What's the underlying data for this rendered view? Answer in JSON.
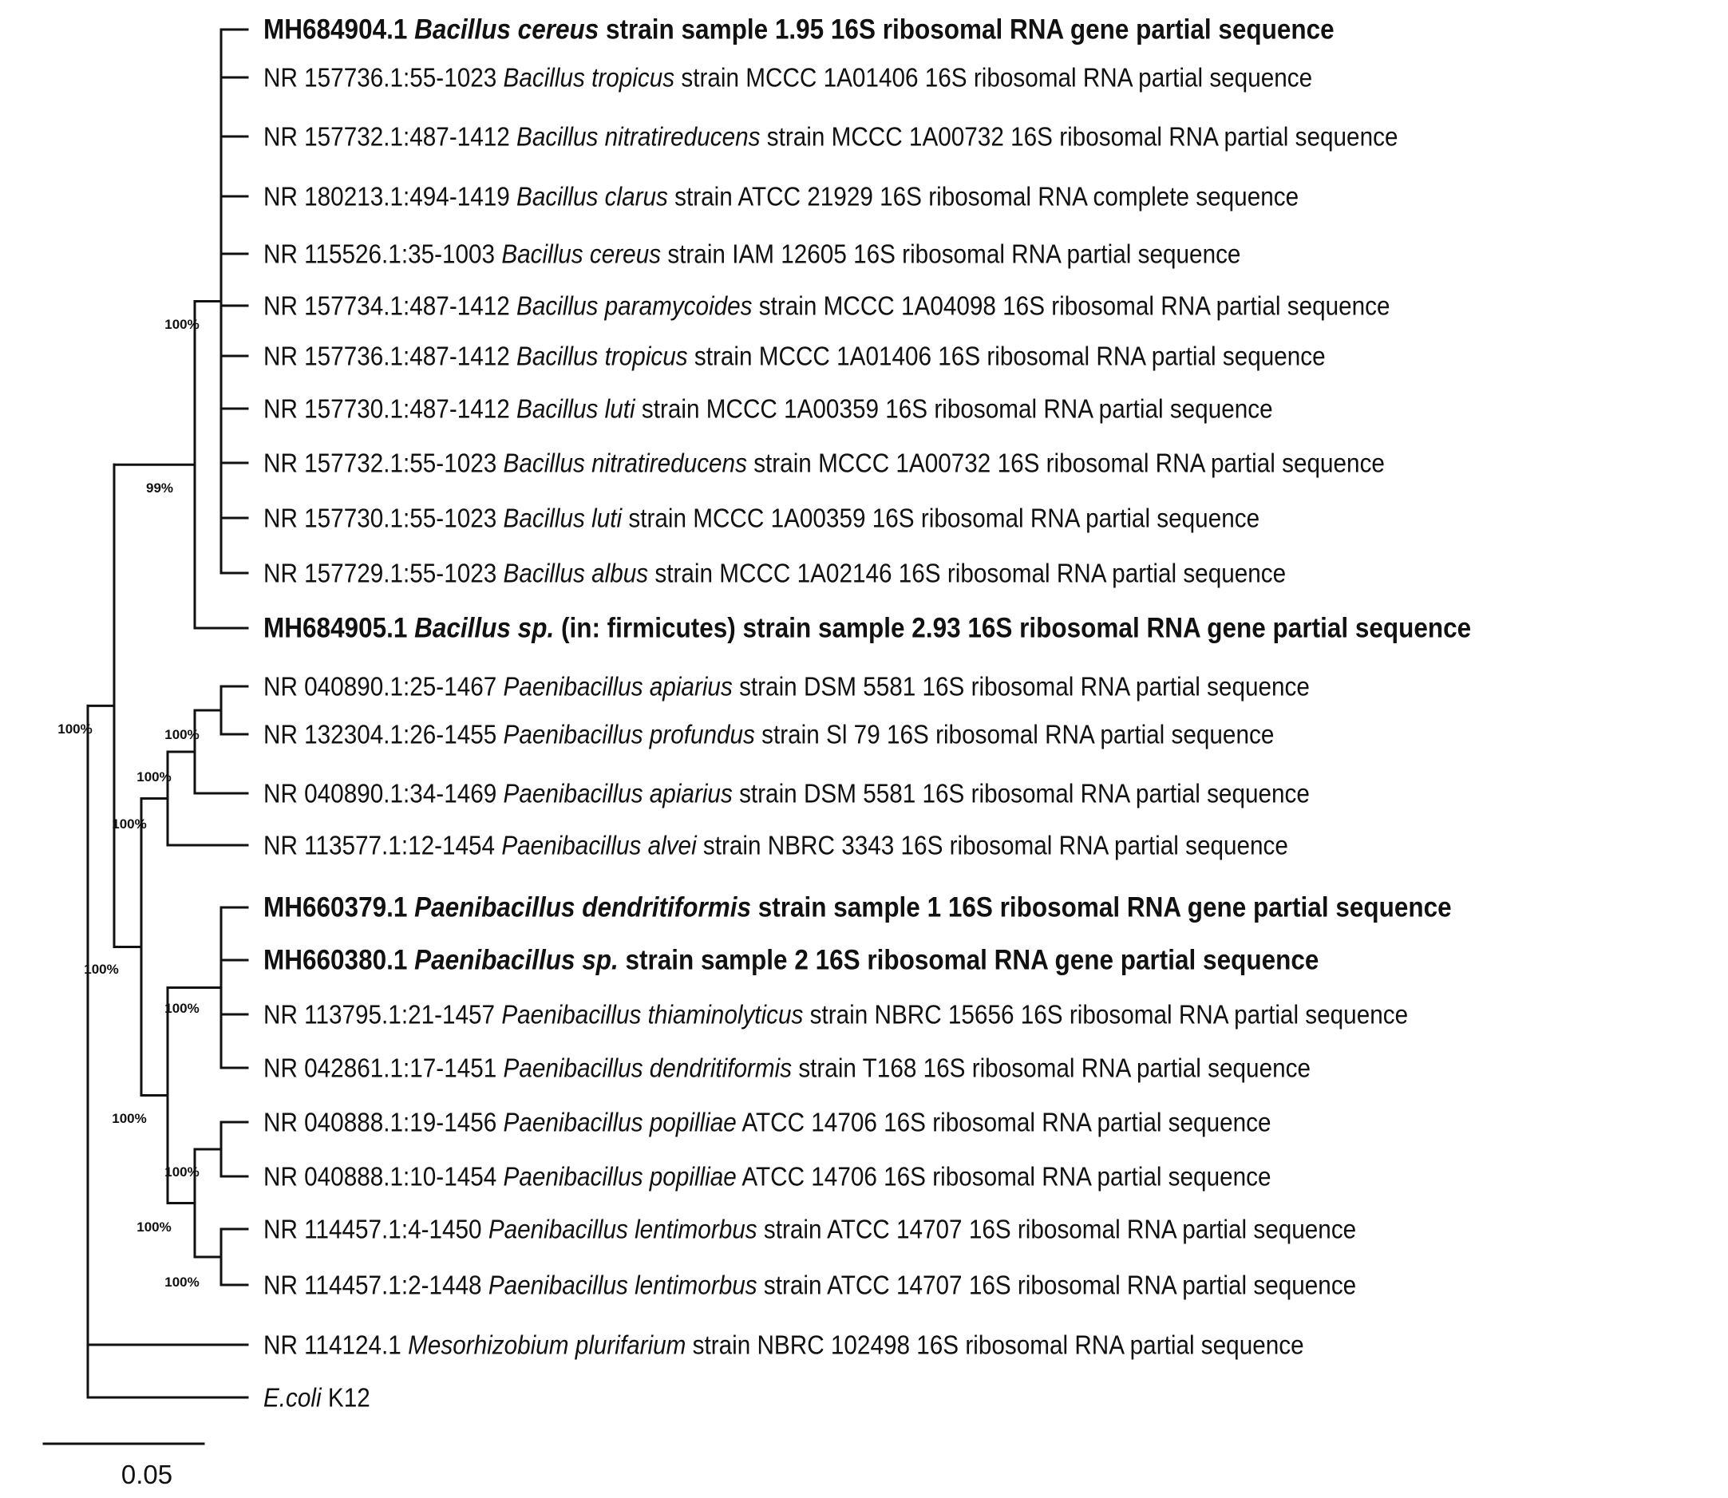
{
  "chart_data": {
    "type": "phylogenetic-tree",
    "scale_bar_label": "0.05",
    "leaves": [
      {
        "id": "L1",
        "bold": true,
        "pre": "MH684904.1 ",
        "ital": "Bacillus cereus",
        "post": " strain sample 1.95 16S ribosomal RNA gene partial sequence"
      },
      {
        "id": "L2",
        "bold": false,
        "pre": "NR 157736.1:55-1023 ",
        "ital": "Bacillus tropicus",
        "post": " strain MCCC 1A01406 16S ribosomal RNA partial sequence"
      },
      {
        "id": "L3",
        "bold": false,
        "pre": "NR 157732.1:487-1412 ",
        "ital": "Bacillus nitratireducens",
        "post": " strain MCCC 1A00732 16S ribosomal RNA partial sequence"
      },
      {
        "id": "L4",
        "bold": false,
        "pre": "NR 180213.1:494-1419 ",
        "ital": "Bacillus clarus",
        "post": " strain ATCC 21929 16S ribosomal RNA complete sequence"
      },
      {
        "id": "L5",
        "bold": false,
        "pre": "NR 115526.1:35-1003 ",
        "ital": "Bacillus cereus",
        "post": " strain IAM 12605 16S ribosomal RNA partial sequence"
      },
      {
        "id": "L6",
        "bold": false,
        "pre": "NR 157734.1:487-1412 ",
        "ital": "Bacillus paramycoides",
        "post": " strain MCCC 1A04098 16S ribosomal RNA partial sequence"
      },
      {
        "id": "L7",
        "bold": false,
        "pre": "NR 157736.1:487-1412 ",
        "ital": "Bacillus tropicus",
        "post": " strain MCCC 1A01406 16S ribosomal RNA partial sequence"
      },
      {
        "id": "L8",
        "bold": false,
        "pre": "NR 157730.1:487-1412 ",
        "ital": "Bacillus luti",
        "post": " strain MCCC 1A00359 16S ribosomal RNA partial sequence"
      },
      {
        "id": "L9",
        "bold": false,
        "pre": "NR 157732.1:55-1023 ",
        "ital": "Bacillus nitratireducens",
        "post": " strain MCCC 1A00732 16S ribosomal RNA partial sequence"
      },
      {
        "id": "L10",
        "bold": false,
        "pre": "NR 157730.1:55-1023 ",
        "ital": "Bacillus luti",
        "post": " strain MCCC 1A00359 16S ribosomal RNA partial sequence"
      },
      {
        "id": "L11",
        "bold": false,
        "pre": "NR 157729.1:55-1023 ",
        "ital": "Bacillus albus",
        "post": " strain MCCC 1A02146 16S ribosomal RNA partial sequence"
      },
      {
        "id": "L12",
        "bold": true,
        "pre": "MH684905.1 ",
        "ital": "Bacillus sp.",
        "post": " (in: firmicutes) strain sample 2.93 16S ribosomal RNA gene partial sequence"
      },
      {
        "id": "L13",
        "bold": false,
        "pre": "NR 040890.1:25-1467 ",
        "ital": "Paenibacillus apiarius",
        "post": " strain DSM 5581 16S ribosomal RNA partial sequence"
      },
      {
        "id": "L14",
        "bold": false,
        "pre": "NR 132304.1:26-1455 ",
        "ital": "Paenibacillus profundus",
        "post": " strain Sl 79 16S ribosomal RNA partial sequence"
      },
      {
        "id": "L15",
        "bold": false,
        "pre": "NR 040890.1:34-1469 ",
        "ital": "Paenibacillus apiarius",
        "post": " strain DSM 5581 16S ribosomal RNA partial sequence"
      },
      {
        "id": "L16",
        "bold": false,
        "pre": "NR 113577.1:12-1454 ",
        "ital": "Paenibacillus alvei",
        "post": " strain NBRC 3343 16S ribosomal RNA partial sequence"
      },
      {
        "id": "L17",
        "bold": true,
        "pre": "MH660379.1 ",
        "ital": "Paenibacillus dendritiformis",
        "post": " strain sample 1 16S ribosomal RNA gene partial sequence"
      },
      {
        "id": "L18",
        "bold": true,
        "pre": "MH660380.1 ",
        "ital": "Paenibacillus sp.",
        "post": " strain sample 2 16S ribosomal RNA gene partial sequence"
      },
      {
        "id": "L19",
        "bold": false,
        "pre": "NR 113795.1:21-1457 ",
        "ital": "Paenibacillus thiaminolyticus",
        "post": " strain NBRC 15656 16S ribosomal RNA partial sequence"
      },
      {
        "id": "L20",
        "bold": false,
        "pre": "NR 042861.1:17-1451 ",
        "ital": "Paenibacillus dendritiformis",
        "post": " strain T168 16S ribosomal RNA partial sequence"
      },
      {
        "id": "L21",
        "bold": false,
        "pre": "NR 040888.1:19-1456 ",
        "ital": "Paenibacillus popilliae",
        "post": " ATCC 14706 16S ribosomal RNA partial sequence"
      },
      {
        "id": "L22",
        "bold": false,
        "pre": "NR 040888.1:10-1454 ",
        "ital": "Paenibacillus popilliae",
        "post": " ATCC 14706 16S ribosomal RNA partial sequence"
      },
      {
        "id": "L23",
        "bold": false,
        "pre": "NR 114457.1:4-1450 ",
        "ital": "Paenibacillus lentimorbus",
        "post": " strain ATCC 14707 16S ribosomal RNA partial sequence"
      },
      {
        "id": "L24",
        "bold": false,
        "pre": "NR 114457.1:2-1448 ",
        "ital": "Paenibacillus lentimorbus",
        "post": " strain ATCC 14707 16S ribosomal RNA partial sequence"
      },
      {
        "id": "L25",
        "bold": false,
        "pre": "NR 114124.1 ",
        "ital": "Mesorhizobium plurifarium",
        "post": " strain NBRC 102498 16S ribosomal RNA partial sequence"
      },
      {
        "id": "L26",
        "bold": false,
        "pre": "",
        "ital": "E.coli",
        "post": " K12"
      }
    ],
    "nodes": [
      {
        "id": "bacInner",
        "children": [
          "L1",
          "L2",
          "L3",
          "L4",
          "L5",
          "L6",
          "L7",
          "L8",
          "L9",
          "L10",
          "L11"
        ],
        "bootstrap": "100%"
      },
      {
        "id": "bacOuter",
        "children": [
          "bacInner",
          "L12"
        ],
        "bootstrap": "99%"
      },
      {
        "id": "E",
        "children": [
          "L13",
          "L14"
        ],
        "bootstrap": "100%"
      },
      {
        "id": "D",
        "children": [
          "E",
          "L15"
        ],
        "bootstrap": "100%"
      },
      {
        "id": "C",
        "children": [
          "D",
          "L16"
        ],
        "bootstrap": "100%"
      },
      {
        "id": "F",
        "children": [
          "L17",
          "L18",
          "L19",
          "L20"
        ],
        "bootstrap": "100%"
      },
      {
        "id": "H",
        "children": [
          "L21",
          "L22"
        ],
        "bootstrap": "100%"
      },
      {
        "id": "I",
        "children": [
          "L23",
          "L24"
        ],
        "bootstrap": "100%"
      },
      {
        "id": "G",
        "children": [
          "H",
          "I"
        ],
        "bootstrap": "100%"
      },
      {
        "id": "C2",
        "children": [
          "F",
          "G"
        ],
        "bootstrap": "100%"
      },
      {
        "id": "B",
        "children": [
          "C",
          "C2"
        ],
        "bootstrap": "100%"
      },
      {
        "id": "A",
        "children": [
          "bacOuter",
          "B"
        ],
        "bootstrap": "100%"
      },
      {
        "id": "root",
        "children": [
          "A",
          "L25",
          "L26"
        ]
      }
    ]
  }
}
